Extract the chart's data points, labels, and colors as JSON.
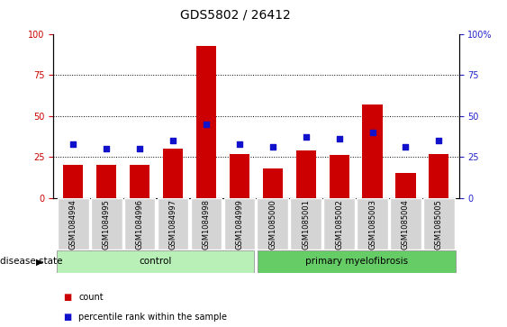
{
  "title": "GDS5802 / 26412",
  "samples": [
    "GSM1084994",
    "GSM1084995",
    "GSM1084996",
    "GSM1084997",
    "GSM1084998",
    "GSM1084999",
    "GSM1085000",
    "GSM1085001",
    "GSM1085002",
    "GSM1085003",
    "GSM1085004",
    "GSM1085005"
  ],
  "counts": [
    20,
    20,
    20,
    30,
    93,
    27,
    18,
    29,
    26,
    57,
    15,
    27
  ],
  "percentiles": [
    33,
    30,
    30,
    35,
    45,
    33,
    31,
    37,
    36,
    40,
    31,
    35
  ],
  "n_control": 6,
  "ylim": [
    0,
    100
  ],
  "bar_color": "#cc0000",
  "percentile_color": "#1111cc",
  "yticks": [
    0,
    25,
    50,
    75,
    100
  ],
  "ytick_labels_left": [
    "0",
    "25",
    "50",
    "75",
    "100"
  ],
  "ytick_labels_right": [
    "0",
    "25",
    "50",
    "75",
    "100%"
  ],
  "ylabel_left_color": "#cc0000",
  "ylabel_right_color": "#2222cc",
  "dotted_lines": [
    25,
    50,
    75
  ],
  "control_color": "#b8f0b8",
  "pmf_color": "#66cc66",
  "disease_state_label": "disease state",
  "legend_count": "count",
  "legend_percentile": "percentile rank within the sample",
  "title_fontsize": 10,
  "tick_label_fontsize": 6,
  "ytick_fontsize": 7,
  "disease_fontsize": 7.5,
  "legend_fontsize": 7
}
